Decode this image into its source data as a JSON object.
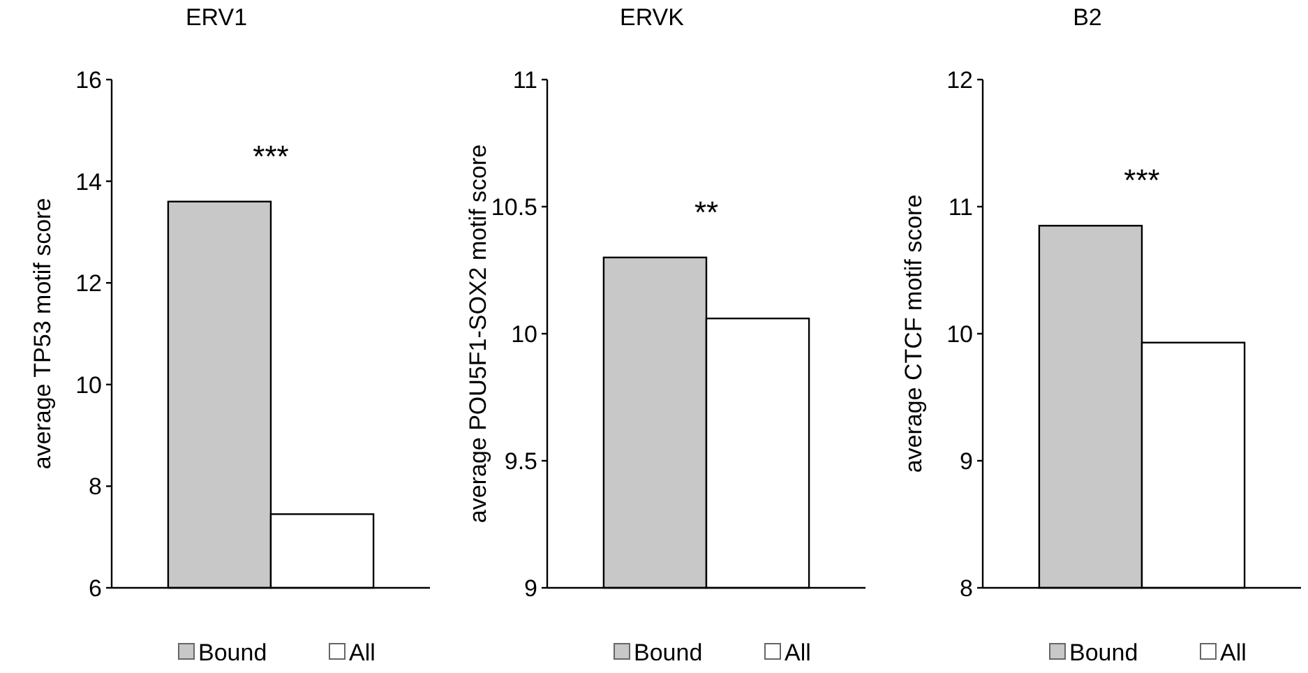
{
  "chart_data": [
    {
      "type": "bar",
      "title": "ERV1",
      "ylabel": "average TP53 motif score",
      "categories": [
        null
      ],
      "series": [
        {
          "name": "Bound",
          "color": "#c8c8c8",
          "values": [
            13.6
          ]
        },
        {
          "name": "All",
          "color": "#ffffff",
          "values": [
            7.45
          ]
        }
      ],
      "ylim": [
        6,
        16
      ],
      "yticks": [
        6,
        8,
        10,
        12,
        14,
        16
      ],
      "annotations": [
        "***"
      ],
      "legend": "bottom",
      "grid": false
    },
    {
      "type": "bar",
      "title": "ERVK",
      "ylabel": "average POU5F1-SOX2 motif score",
      "categories": [
        null
      ],
      "series": [
        {
          "name": "Bound",
          "color": "#c8c8c8",
          "values": [
            10.3
          ]
        },
        {
          "name": "All",
          "color": "#ffffff",
          "values": [
            10.06
          ]
        }
      ],
      "ylim": [
        9,
        11
      ],
      "yticks": [
        9,
        9.5,
        10,
        10.5,
        11
      ],
      "annotations": [
        "**"
      ],
      "legend": "bottom",
      "grid": false
    },
    {
      "type": "bar",
      "title": "B2",
      "ylabel": "average CTCF motif score",
      "categories": [
        null
      ],
      "series": [
        {
          "name": "Bound",
          "color": "#c8c8c8",
          "values": [
            10.85
          ]
        },
        {
          "name": "All",
          "color": "#ffffff",
          "values": [
            9.93
          ]
        }
      ],
      "ylim": [
        8,
        12
      ],
      "yticks": [
        8,
        9,
        10,
        11,
        12
      ],
      "annotations": [
        "***"
      ],
      "legend": "bottom",
      "grid": false
    }
  ]
}
